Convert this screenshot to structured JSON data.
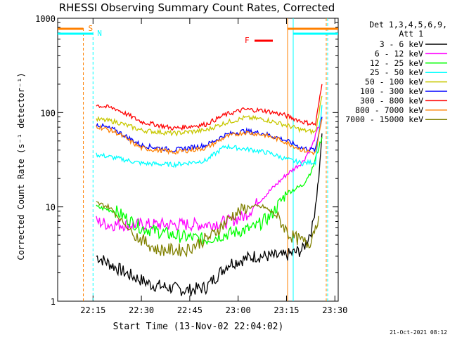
{
  "chart_data": {
    "type": "line",
    "title": "RHESSI Observing Summary Count Rates, Corrected",
    "xlabel": "Start Time (13-Nov-02 22:04:02)",
    "ylabel": "Corrected Count Rate (s⁻¹ detector⁻¹)",
    "y_scale": "log",
    "ylim": [
      1,
      1000
    ],
    "y_ticks": [
      {
        "v": 1,
        "label": "1"
      },
      {
        "v": 10,
        "label": "10"
      },
      {
        "v": 100,
        "label": "100"
      },
      {
        "v": 1000,
        "label": "1000"
      }
    ],
    "x_range_minutes": [
      0,
      87
    ],
    "x_ticks": [
      {
        "t": "22:15",
        "label": "22:15"
      },
      {
        "t": "22:30",
        "label": "22:30"
      },
      {
        "t": "22:45",
        "label": "22:45"
      },
      {
        "t": "23:00",
        "label": "23:00"
      },
      {
        "t": "23:15",
        "label": "23:15"
      },
      {
        "t": "23:30",
        "label": "23:30"
      }
    ],
    "legend_header": [
      "Det 1,3,4,5,6,9,",
      "Att 1"
    ],
    "legend_placement": "right",
    "series": [
      {
        "name": "3 - 6 keV",
        "color": "#000000",
        "x": [
          "22:16",
          "22:25",
          "22:33",
          "22:44",
          "22:50",
          "22:57",
          "23:05",
          "23:14",
          "23:20",
          "23:23",
          "23:25",
          "23:26"
        ],
        "y": [
          3,
          2,
          1.5,
          1.3,
          1.4,
          2.5,
          3,
          3,
          3.5,
          6,
          20,
          60
        ]
      },
      {
        "name": "6 - 12 keV",
        "color": "#ff00ff",
        "x": [
          "22:16",
          "22:20",
          "22:30",
          "22:40",
          "22:50",
          "22:57",
          "23:02",
          "23:06",
          "23:10",
          "23:15",
          "23:20",
          "23:23",
          "23:26"
        ],
        "y": [
          7,
          6.5,
          6.5,
          6.5,
          6.5,
          7,
          8,
          11,
          15,
          22,
          30,
          45,
          90
        ]
      },
      {
        "name": "12 - 25 keV",
        "color": "#00ff00",
        "x": [
          "22:16",
          "22:22",
          "22:30",
          "22:40",
          "22:50",
          "22:55",
          "23:00",
          "23:05",
          "23:10",
          "23:15",
          "23:20",
          "23:23",
          "23:26"
        ],
        "y": [
          10,
          9,
          6,
          5,
          4.5,
          5,
          5.5,
          6,
          8,
          14,
          17,
          25,
          55
        ]
      },
      {
        "name": "25 - 50 keV",
        "color": "#00ffff",
        "x": [
          "22:16",
          "22:22",
          "22:30",
          "22:40",
          "22:50",
          "22:56",
          "23:00",
          "23:05",
          "23:10",
          "23:15",
          "23:20",
          "23:24",
          "23:26"
        ],
        "y": [
          36,
          33,
          29,
          28,
          31,
          44,
          42,
          40,
          37,
          32,
          29,
          30,
          120
        ]
      },
      {
        "name": "50 - 100 keV",
        "color": "#c8c800",
        "x": [
          "22:16",
          "22:22",
          "22:30",
          "22:40",
          "22:50",
          "22:56",
          "23:02",
          "23:08",
          "23:14",
          "23:20",
          "23:24",
          "23:26"
        ],
        "y": [
          85,
          80,
          65,
          60,
          65,
          78,
          88,
          85,
          75,
          65,
          62,
          150
        ]
      },
      {
        "name": "100 - 300 keV",
        "color": "#0000ff",
        "x": [
          "22:16",
          "22:22",
          "22:30",
          "22:40",
          "22:50",
          "22:56",
          "23:02",
          "23:08",
          "23:14",
          "23:20",
          "23:24",
          "23:26"
        ],
        "y": [
          75,
          65,
          45,
          40,
          45,
          58,
          64,
          60,
          52,
          42,
          40,
          90
        ]
      },
      {
        "name": "300 - 800 keV",
        "color": "#ff0000",
        "x": [
          "22:16",
          "22:22",
          "22:30",
          "22:40",
          "22:50",
          "22:56",
          "23:02",
          "23:08",
          "23:14",
          "23:20",
          "23:24",
          "23:26"
        ],
        "y": [
          120,
          110,
          80,
          68,
          75,
          95,
          108,
          105,
          95,
          80,
          75,
          200
        ]
      },
      {
        "name": "800 - 7000 keV",
        "color": "#ff8000",
        "x": [
          "22:16",
          "22:22",
          "22:30",
          "22:40",
          "22:50",
          "22:56",
          "23:02",
          "23:08",
          "23:14",
          "23:20",
          "23:24",
          "23:26"
        ],
        "y": [
          72,
          62,
          42,
          38,
          42,
          55,
          62,
          58,
          50,
          40,
          37,
          85
        ]
      },
      {
        "name": "7000 - 15000 keV",
        "color": "#808000",
        "x": [
          "22:16",
          "22:20",
          "22:28",
          "22:35",
          "22:44",
          "22:52",
          "22:58",
          "23:03",
          "23:08",
          "23:12",
          "23:16",
          "23:22",
          "23:25"
        ],
        "y": [
          11,
          10,
          5,
          3.5,
          3.5,
          5,
          8,
          10,
          10,
          8,
          5,
          4,
          8
        ]
      }
    ],
    "annotations": [
      {
        "label": "S",
        "color": "#ff8000",
        "t": "22:12"
      },
      {
        "label": "N",
        "color": "#00ffff",
        "t": "22:15"
      },
      {
        "label": "F",
        "color": "#ff0000",
        "t": "23:13"
      }
    ]
  },
  "footer": {
    "timestamp": "21-Oct-2021 08:12"
  }
}
